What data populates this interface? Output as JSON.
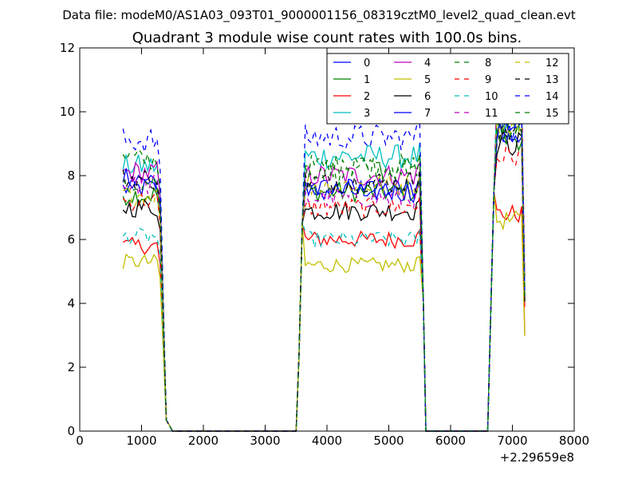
{
  "figure": {
    "suptitle": "Data file: modeM0/AS1A03_093T01_9000001156_08319cztM0_level2_quad_clean.evt"
  },
  "chart_data": {
    "type": "line",
    "title": "Quadrant 3 module wise count rates with 100.0s bins.",
    "xlabel": "",
    "ylabel": "",
    "xlim": [
      0,
      8000
    ],
    "ylim": [
      0,
      12
    ],
    "x_offset_label": "+2.29659e8",
    "xticks": [
      0,
      1000,
      2000,
      3000,
      4000,
      5000,
      6000,
      7000,
      8000
    ],
    "xtick_labels": [
      "0",
      "1000",
      "2000",
      "3000",
      "4000",
      "5000",
      "6000",
      "7000",
      "8000"
    ],
    "yticks": [
      0,
      2,
      4,
      6,
      8,
      10,
      12
    ],
    "ytick_labels": [
      "0",
      "2",
      "4",
      "6",
      "8",
      "10",
      "12"
    ],
    "grid": false,
    "legend": {
      "position": "top-right",
      "columns": 4
    },
    "segments": [
      {
        "start": 700,
        "end": 1300
      },
      {
        "start": 3600,
        "end": 5500
      },
      {
        "start": 6700,
        "end": 7200
      }
    ],
    "series": [
      {
        "name": "0",
        "color": "#0000ff",
        "style": "solid",
        "levels": [
          7.6,
          7.6,
          9.6
        ]
      },
      {
        "name": "1",
        "color": "#008000",
        "style": "solid",
        "levels": [
          7.4,
          7.5,
          9.2
        ]
      },
      {
        "name": "2",
        "color": "#ff0000",
        "style": "solid",
        "levels": [
          5.8,
          6.0,
          6.8
        ]
      },
      {
        "name": "3",
        "color": "#00bfbf",
        "style": "solid",
        "levels": [
          8.3,
          8.6,
          10.2
        ]
      },
      {
        "name": "4",
        "color": "#bf00bf",
        "style": "solid",
        "levels": [
          8.1,
          8.0,
          10.0
        ]
      },
      {
        "name": "5",
        "color": "#bfbf00",
        "style": "solid",
        "levels": [
          5.3,
          5.2,
          6.6
        ]
      },
      {
        "name": "6",
        "color": "#000000",
        "style": "solid",
        "levels": [
          7.0,
          6.9,
          9.0
        ]
      },
      {
        "name": "7",
        "color": "#0000ff",
        "style": "solid",
        "levels": [
          7.9,
          7.5,
          9.3
        ]
      },
      {
        "name": "8",
        "color": "#008000",
        "style": "dashed",
        "levels": [
          8.5,
          8.3,
          9.5
        ]
      },
      {
        "name": "9",
        "color": "#ff0000",
        "style": "dashed",
        "levels": [
          7.2,
          7.0,
          8.6
        ]
      },
      {
        "name": "10",
        "color": "#00bfbf",
        "style": "dashed",
        "levels": [
          6.1,
          6.0,
          9.8
        ]
      },
      {
        "name": "11",
        "color": "#bf00bf",
        "style": "dashed",
        "levels": [
          7.7,
          7.3,
          10.6
        ]
      },
      {
        "name": "12",
        "color": "#bfbf00",
        "style": "dashed",
        "levels": [
          7.4,
          7.7,
          9.6
        ]
      },
      {
        "name": "13",
        "color": "#000000",
        "style": "dashed",
        "levels": [
          7.9,
          7.8,
          9.4
        ]
      },
      {
        "name": "14",
        "color": "#0000ff",
        "style": "dashed",
        "levels": [
          9.1,
          9.2,
          9.4
        ]
      },
      {
        "name": "15",
        "color": "#008000",
        "style": "dashed",
        "levels": [
          7.8,
          8.2,
          9.3
        ]
      }
    ]
  }
}
